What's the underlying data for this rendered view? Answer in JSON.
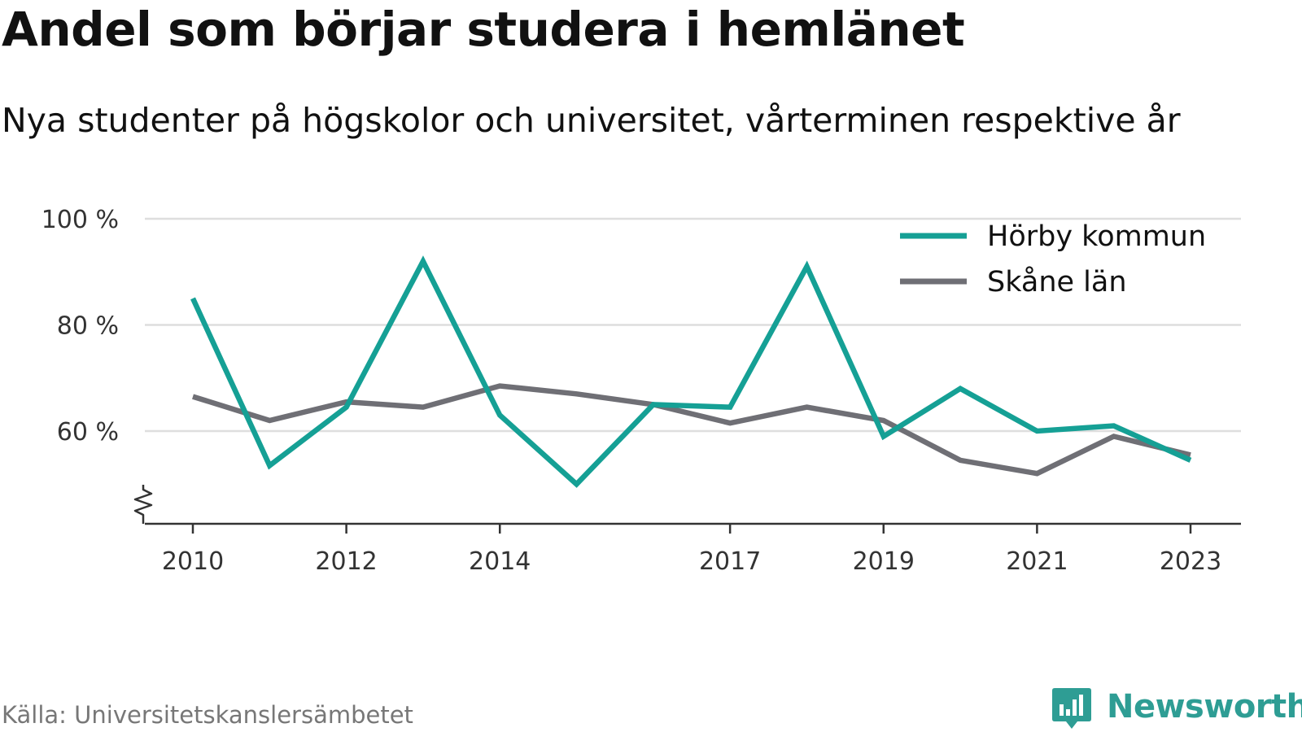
{
  "title": "Andel som börjar studera i hemlänet",
  "subtitle": "Nya studenter på högskolor och universitet, vårterminen respektive år",
  "source": "Källa: Universitetskanslersämbetet",
  "brand": "Newsworthy",
  "colors": {
    "horby": "#15a095",
    "skane": "#6f6f75",
    "grid": "#dedede",
    "axis": "#333333",
    "brand": "#2e9d94"
  },
  "icons": {
    "brand": "bar-chart-speech-icon",
    "axis_break": "axis-break-icon"
  },
  "chart_data": {
    "type": "line",
    "title": "Andel som börjar studera i hemlänet",
    "subtitle": "Nya studenter på högskolor och universitet, vårterminen respektive år",
    "x": [
      2010,
      2011,
      2012,
      2013,
      2014,
      2015,
      2016,
      2017,
      2018,
      2019,
      2020,
      2021,
      2022,
      2023
    ],
    "x_ticks": [
      2010,
      2012,
      2014,
      2017,
      2019,
      2021,
      2023
    ],
    "y_ticks": [
      60,
      80,
      100
    ],
    "y_tick_labels": [
      "60 %",
      "80 %",
      "100 %"
    ],
    "ylim": [
      43,
      100
    ],
    "axis_break": true,
    "grid": true,
    "legend_position": "top-right",
    "series": [
      {
        "name": "Hörby kommun",
        "color": "#15a095",
        "values": [
          85,
          53.5,
          64.5,
          92,
          63,
          50,
          65,
          64.5,
          91,
          59,
          68,
          60,
          61,
          54.5
        ]
      },
      {
        "name": "Skåne län",
        "color": "#6f6f75",
        "values": [
          66.5,
          62,
          65.5,
          64.5,
          68.5,
          67,
          65,
          61.5,
          64.5,
          62,
          54.5,
          52,
          59,
          55.5
        ]
      }
    ]
  }
}
